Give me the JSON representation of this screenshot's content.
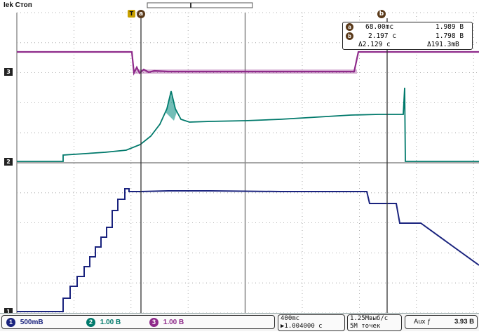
{
  "header": {
    "title": "Iek Стоп"
  },
  "cursor_labels": {
    "a": "a",
    "b": "b",
    "trigger": "T"
  },
  "readout": {
    "a_time": "68.00mc",
    "a_value": "1.989 B",
    "b_time": "2.197 c",
    "b_value": "1.798 B",
    "delta_time": "Δ2.129 c",
    "delta_value": "Δ191.3mB"
  },
  "channel_markers": {
    "ch1": "1",
    "ch2": "2",
    "ch3": "3"
  },
  "status": {
    "ch1_num": "1",
    "ch1_scale": "500mB",
    "ch2_num": "2",
    "ch2_scale": "1.00 B",
    "ch3_num": "3",
    "ch3_scale": "1.00 B",
    "timebase": "400mc",
    "trigger_pos": "▶1.004000 c",
    "sample_rate": "1.25Mвыб/с",
    "record_length": "5M точек",
    "aux_label": "Aux ƒ",
    "aux_level": "3.93 B"
  },
  "colors": {
    "ch1": "#1a237e",
    "ch2": "#00796b",
    "ch3": "#8e2a8a",
    "grid": "#8a8a8a",
    "cursor": "#333333"
  }
}
